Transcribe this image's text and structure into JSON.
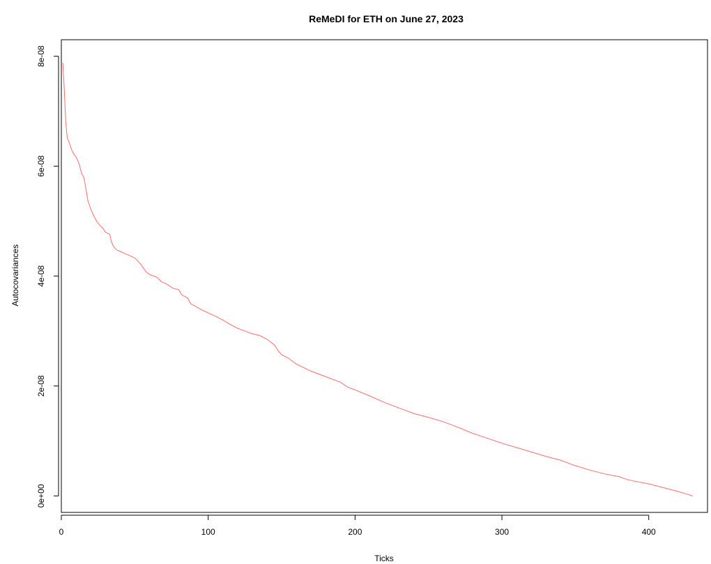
{
  "chart_data": {
    "type": "line",
    "title": "ReMeDI for ETH on June 27, 2023",
    "xlabel": "Ticks",
    "ylabel": "Autocovariances",
    "xlim": [
      0,
      440
    ],
    "ylim": [
      -3e-09,
      8.3e-08
    ],
    "x_ticks": [
      0,
      100,
      200,
      300,
      400
    ],
    "x_tick_labels": [
      "0",
      "100",
      "200",
      "300",
      "400"
    ],
    "y_ticks": [
      0,
      2e-08,
      4e-08,
      6e-08,
      8e-08
    ],
    "y_tick_labels": [
      "0e+00",
      "2e-08",
      "4e-08",
      "6e-08",
      "8e-08"
    ],
    "grid": false,
    "legend": "none",
    "series": [
      {
        "color": "#ff6a6a",
        "x": [
          1,
          2,
          3,
          4,
          5,
          6,
          7,
          8,
          9,
          10,
          12,
          14,
          15,
          16,
          17,
          18,
          19,
          20,
          22,
          24,
          26,
          28,
          30,
          33,
          34,
          35,
          36,
          38,
          40,
          44,
          46,
          50,
          54,
          56,
          58,
          60,
          65,
          68,
          72,
          76,
          80,
          82,
          86,
          88,
          92,
          96,
          100,
          105,
          110,
          115,
          120,
          125,
          130,
          135,
          140,
          145,
          148,
          150,
          155,
          160,
          170,
          180,
          190,
          195,
          200,
          210,
          220,
          230,
          240,
          250,
          260,
          270,
          280,
          290,
          300,
          310,
          320,
          330,
          340,
          345,
          350,
          360,
          370,
          380,
          385,
          390,
          400,
          410,
          420,
          425,
          430
        ],
        "y": [
          7.88e-08,
          7.4e-08,
          6.8e-08,
          6.52e-08,
          6.45e-08,
          6.38e-08,
          6.3e-08,
          6.24e-08,
          6.2e-08,
          6.17e-08,
          6.05e-08,
          5.85e-08,
          5.82e-08,
          5.7e-08,
          5.55e-08,
          5.38e-08,
          5.3e-08,
          5.22e-08,
          5.1e-08,
          5e-08,
          4.93e-08,
          4.88e-08,
          4.8e-08,
          4.76e-08,
          4.63e-08,
          4.57e-08,
          4.52e-08,
          4.47e-08,
          4.45e-08,
          4.4e-08,
          4.38e-08,
          4.33e-08,
          4.22e-08,
          4.14e-08,
          4.07e-08,
          4.03e-08,
          3.98e-08,
          3.9e-08,
          3.85e-08,
          3.78e-08,
          3.75e-08,
          3.66e-08,
          3.6e-08,
          3.5e-08,
          3.44e-08,
          3.38e-08,
          3.33e-08,
          3.27e-08,
          3.2e-08,
          3.12e-08,
          3.05e-08,
          3e-08,
          2.95e-08,
          2.92e-08,
          2.85e-08,
          2.75e-08,
          2.63e-08,
          2.57e-08,
          2.5e-08,
          2.4e-08,
          2.27e-08,
          2.17e-08,
          2.07e-08,
          1.98e-08,
          1.93e-08,
          1.82e-08,
          1.7e-08,
          1.6e-08,
          1.5e-08,
          1.43e-08,
          1.35e-08,
          1.25e-08,
          1.14e-08,
          1.05e-08,
          9.6e-09,
          8.8e-09,
          8e-09,
          7.2e-09,
          6.5e-09,
          6e-09,
          5.5e-09,
          4.7e-09,
          4e-09,
          3.5e-09,
          3e-09,
          2.7e-09,
          2.2e-09,
          1.5e-09,
          8e-10,
          4e-10,
          0.0
        ]
      }
    ]
  }
}
